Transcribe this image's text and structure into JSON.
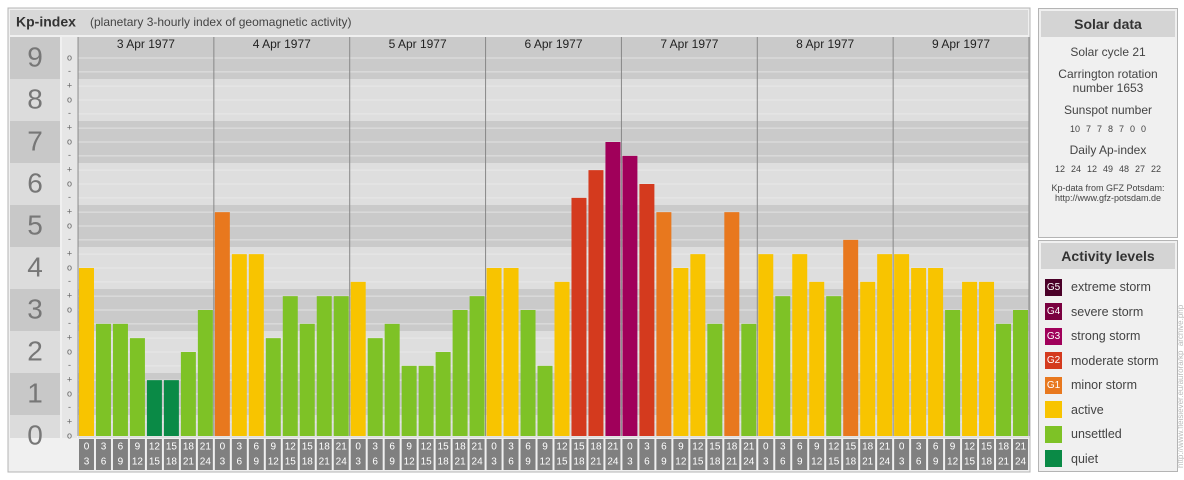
{
  "chart_data": {
    "type": "bar",
    "title": "Kp-index",
    "subtitle": "(planetary 3-hourly index of geomagnetic activity)",
    "days": [
      "3 Apr 1977",
      "4 Apr 1977",
      "5 Apr 1977",
      "6 Apr 1977",
      "7 Apr 1977",
      "8 Apr 1977",
      "9 Apr 1977"
    ],
    "hour_starts": [
      0,
      3,
      6,
      9,
      12,
      15,
      18,
      21
    ],
    "hour_ends": [
      3,
      6,
      9,
      12,
      15,
      18,
      21,
      24
    ],
    "values": [
      4,
      2.67,
      2.67,
      2.33,
      1.33,
      1.33,
      2,
      3,
      5.33,
      4.33,
      4.33,
      2.33,
      3.33,
      2.67,
      3.33,
      3.33,
      3.67,
      2.33,
      2.67,
      1.67,
      1.67,
      2,
      3,
      3.33,
      4,
      4,
      3,
      1.67,
      3.67,
      5.67,
      6.33,
      7,
      6.67,
      6,
      5.33,
      4,
      4.33,
      2.67,
      5.33,
      2.67,
      4.33,
      3.33,
      4.33,
      3.67,
      3.33,
      4.67,
      3.67,
      4.33,
      4.33,
      4,
      4,
      3,
      3.67,
      3.67,
      2.67,
      3
    ],
    "colors": [
      "#f8c400",
      "#7ec226",
      "#7ec226",
      "#7ec226",
      "#0a8a46",
      "#0a8a46",
      "#7ec226",
      "#7ec226",
      "#e8781e",
      "#f8c400",
      "#f8c400",
      "#7ec226",
      "#7ec226",
      "#7ec226",
      "#7ec226",
      "#7ec226",
      "#f8c400",
      "#7ec226",
      "#7ec226",
      "#7ec226",
      "#7ec226",
      "#7ec226",
      "#7ec226",
      "#7ec226",
      "#f8c400",
      "#f8c400",
      "#7ec226",
      "#7ec226",
      "#f8c400",
      "#d43a1e",
      "#d43a1e",
      "#a0005a",
      "#a0005a",
      "#d43a1e",
      "#e8781e",
      "#f8c400",
      "#f8c400",
      "#7ec226",
      "#e8781e",
      "#7ec226",
      "#f8c400",
      "#7ec226",
      "#f8c400",
      "#f8c400",
      "#7ec226",
      "#e8781e",
      "#f8c400",
      "#f8c400",
      "#f8c400",
      "#f8c400",
      "#f8c400",
      "#7ec226",
      "#f8c400",
      "#f8c400",
      "#7ec226",
      "#7ec226"
    ],
    "ylim": [
      0,
      9.5
    ],
    "yticks": [
      0,
      1,
      2,
      3,
      4,
      5,
      6,
      7,
      8,
      9
    ],
    "minor_yticks": [
      {
        "value": 0,
        "label": "o"
      },
      {
        "value": 0.33,
        "label": "+"
      },
      {
        "value": 0.67,
        "label": "-"
      },
      {
        "value": 1,
        "label": "o"
      },
      {
        "value": 1.33,
        "label": "+"
      },
      {
        "value": 1.67,
        "label": "-"
      },
      {
        "value": 2,
        "label": "o"
      },
      {
        "value": 2.33,
        "label": "+"
      },
      {
        "value": 2.67,
        "label": "-"
      },
      {
        "value": 3,
        "label": "o"
      },
      {
        "value": 3.33,
        "label": "+"
      },
      {
        "value": 3.67,
        "label": "-"
      },
      {
        "value": 4,
        "label": "o"
      },
      {
        "value": 4.33,
        "label": "+"
      },
      {
        "value": 4.67,
        "label": "-"
      },
      {
        "value": 5,
        "label": "o"
      },
      {
        "value": 5.33,
        "label": "+"
      },
      {
        "value": 5.67,
        "label": "-"
      },
      {
        "value": 6,
        "label": "o"
      },
      {
        "value": 6.33,
        "label": "+"
      },
      {
        "value": 6.67,
        "label": "-"
      },
      {
        "value": 7,
        "label": "o"
      },
      {
        "value": 7.33,
        "label": "+"
      },
      {
        "value": 7.67,
        "label": "-"
      },
      {
        "value": 8,
        "label": "o"
      },
      {
        "value": 8.33,
        "label": "+"
      },
      {
        "value": 8.67,
        "label": "-"
      },
      {
        "value": 9,
        "label": "o"
      }
    ],
    "grid": true
  },
  "solar_data": {
    "title": "Solar data",
    "cycle": "Solar cycle 21",
    "carrington": "Carrington rotation number 1653",
    "sunspot_title": "Sunspot number",
    "sunspot": [
      10,
      7,
      7,
      8,
      7,
      0,
      0
    ],
    "ap_title": "Daily Ap-index",
    "ap": [
      12,
      24,
      12,
      49,
      48,
      27,
      22
    ],
    "source": "Kp-data from GFZ Potsdam:",
    "source_url": "http://www.gfz-potsdam.de"
  },
  "activity_levels": {
    "title": "Activity levels",
    "items": [
      {
        "code": "G5",
        "name": "extreme storm",
        "color": "#4a0028"
      },
      {
        "code": "G4",
        "name": "severe storm",
        "color": "#7a0040"
      },
      {
        "code": "G3",
        "name": "strong storm",
        "color": "#a0005a"
      },
      {
        "code": "G2",
        "name": "moderate storm",
        "color": "#d43a1e"
      },
      {
        "code": "G1",
        "name": "minor storm",
        "color": "#e8781e"
      },
      {
        "name": "active",
        "color": "#f8c400"
      },
      {
        "name": "unsettled",
        "color": "#7ec226"
      },
      {
        "name": "quiet",
        "color": "#0a8a46"
      }
    ]
  },
  "side_url": "http://www.fleisiever.eu/aurora/kp_archive.php"
}
